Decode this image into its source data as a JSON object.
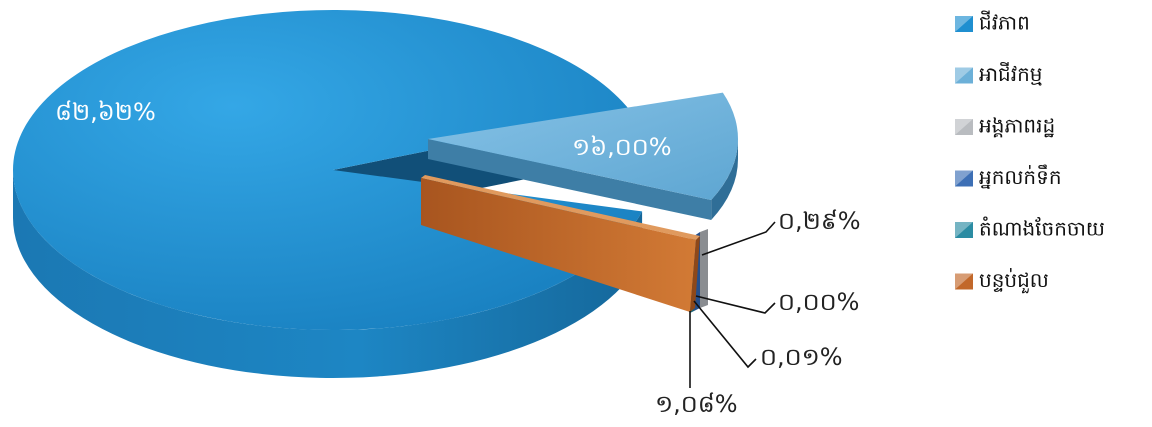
{
  "chart_data": {
    "type": "pie",
    "title": "",
    "categories": [
      "ជីវភាព",
      "អាជីវកម្ម",
      "អង្គភាពរដ្ឋ",
      "អ្នកលក់ទឹក",
      "តំណាងចែកចាយ",
      "បន្ទប់ជួល"
    ],
    "values": [
      82.62,
      16.0,
      0.29,
      0.0,
      0.01,
      1.08
    ],
    "value_labels": [
      "៨២,៦២%",
      "១៦,០០%",
      "០,២៩%",
      "០,០០%",
      "០,០១%",
      "១,០៨%"
    ],
    "colors": [
      "#1f8fd0",
      "#6cb0d8",
      "#b9bcc0",
      "#3d6fb5",
      "#2b8ca3",
      "#c2682a"
    ],
    "side_colors": [
      "#13679b",
      "#3e7ea6",
      "#8a8d91",
      "#264f8a",
      "#1b6577",
      "#8e4819"
    ],
    "legend": {
      "position": "right"
    },
    "exploded": true,
    "three_d": true
  }
}
